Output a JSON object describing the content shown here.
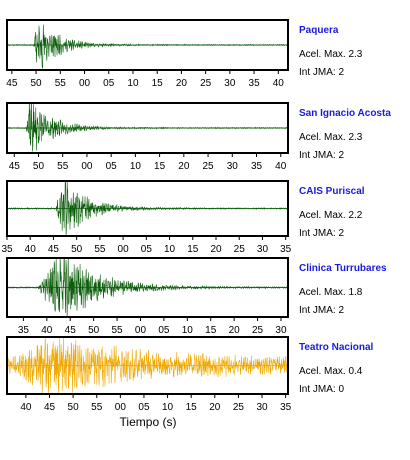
{
  "chart_data": {
    "type": "line",
    "xlabel": "Tiempo (s)",
    "panels": [
      {
        "station": "Paquera",
        "accel_label": "Acel. Max. 2.3",
        "jma_label": "Int JMA: 2",
        "color": "#0b5e0b",
        "tick_labels": [
          "45",
          "50",
          "55",
          "00",
          "05",
          "10",
          "15",
          "20",
          "25",
          "30",
          "35",
          "40"
        ],
        "first_tick": 44,
        "last_tick": 99,
        "x_range": [
          43,
          101
        ],
        "onset": 48.5,
        "rise": 0.8,
        "decay": 4.0,
        "peak": 2.3,
        "freq": 7,
        "seed": 11
      },
      {
        "station": "San Ignacio Acosta",
        "accel_label": "Acel. Max. 2.3",
        "jma_label": "Int JMA: 2",
        "color": "#0b5e0b",
        "tick_labels": [
          "45",
          "50",
          "55",
          "00",
          "05",
          "10",
          "15",
          "20",
          "25",
          "30",
          "35",
          "40"
        ],
        "first_tick": 44,
        "last_tick": 99,
        "x_range": [
          42.5,
          100.5
        ],
        "onset": 46.5,
        "rise": 0.6,
        "decay": 4.5,
        "peak": 2.3,
        "freq": 7,
        "seed": 23
      },
      {
        "station": "CAIS Puriscal",
        "accel_label": "Acel. Max. 2.2",
        "jma_label": "Int JMA: 2",
        "color": "#0b5e0b",
        "tick_labels": [
          "35",
          "40",
          "45",
          "50",
          "55",
          "00",
          "05",
          "10",
          "15",
          "20",
          "25",
          "30",
          "35"
        ],
        "first_tick": 35,
        "last_tick": 95,
        "x_range": [
          35,
          95.5
        ],
        "onset": 45.5,
        "rise": 1.5,
        "decay": 5.0,
        "peak": 2.2,
        "freq": 7,
        "seed": 37
      },
      {
        "station": "Clinica Turrubares",
        "accel_label": "Acel. Max. 1.8",
        "jma_label": "Int JMA: 2",
        "color": "#0b5e0b",
        "tick_labels": [
          "35",
          "40",
          "45",
          "50",
          "55",
          "00",
          "05",
          "10",
          "15",
          "20",
          "25",
          "30"
        ],
        "first_tick": 35,
        "last_tick": 90,
        "x_range": [
          31.5,
          91.5
        ],
        "onset": 38,
        "rise": 5.0,
        "decay": 8.0,
        "peak": 1.8,
        "freq": 7,
        "seed": 53
      },
      {
        "station": "Teatro Nacional",
        "accel_label": "Acel. Max. 0.4",
        "jma_label": "Int JMA: 0",
        "color": "#f0a800",
        "tick_labels": [
          "40",
          "45",
          "50",
          "55",
          "00",
          "05",
          "10",
          "15",
          "20",
          "25",
          "30",
          "35"
        ],
        "first_tick": 40,
        "last_tick": 95,
        "x_range": [
          36,
          95.5
        ],
        "onset": 38,
        "rise": 7.0,
        "decay": 14.0,
        "peak": 0.4,
        "freq": 7,
        "seed": 71,
        "noise_floor": 0.25
      }
    ]
  }
}
